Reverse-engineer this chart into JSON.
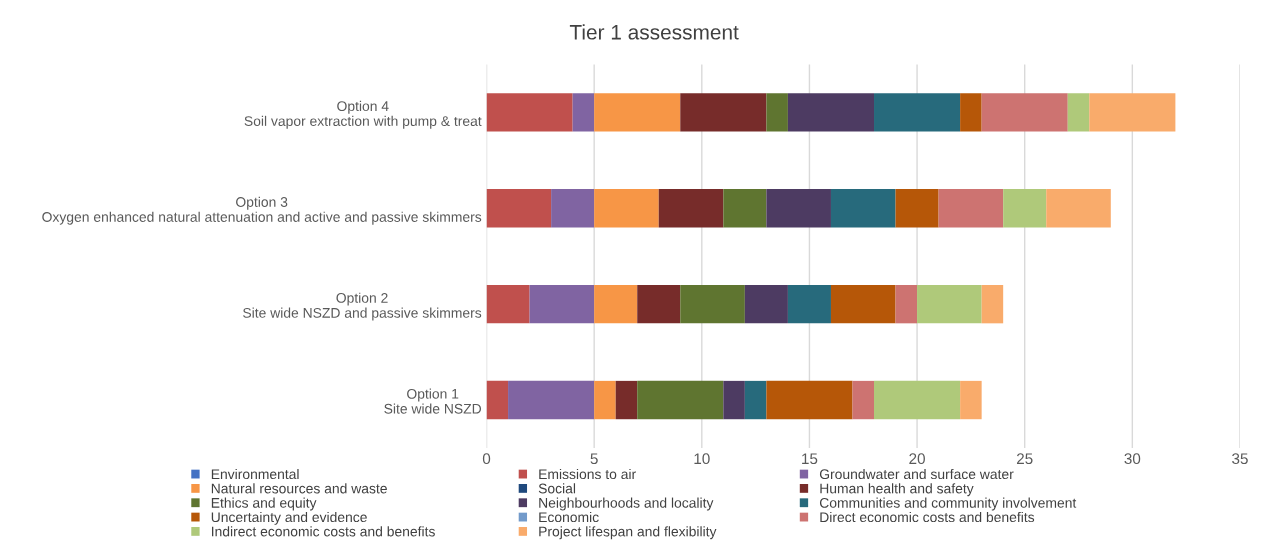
{
  "chart_data": {
    "type": "bar",
    "orientation": "horizontal",
    "stacked": true,
    "title": "Tier 1 assessment",
    "categories": [
      "Option 4\nSoil vapor extraction with pump & treat",
      "Option 3\nOxygen enhanced natural attenuation and active and passive skimmers",
      "Option 2\nSite wide NSZD and passive skimmers",
      "Option 1\nSite wide NSZD"
    ],
    "series": [
      {
        "name": "Environmental",
        "color": "#4472c4",
        "values": [
          0,
          0,
          0,
          0
        ]
      },
      {
        "name": "Emissions to air",
        "color": "#c0504d",
        "values": [
          4,
          3,
          2,
          1
        ]
      },
      {
        "name": "Groundwater and surface water",
        "color": "#8064a2",
        "values": [
          1,
          2,
          3,
          4
        ]
      },
      {
        "name": "Natural resources and waste",
        "color": "#f79646",
        "values": [
          4,
          3,
          2,
          1
        ]
      },
      {
        "name": "Social",
        "color": "#1f497d",
        "values": [
          0,
          0,
          0,
          0
        ]
      },
      {
        "name": "Human health and safety",
        "color": "#772c2a",
        "values": [
          4,
          3,
          2,
          1
        ]
      },
      {
        "name": "Ethics and equity",
        "color": "#5f7530",
        "values": [
          1,
          2,
          3,
          4
        ]
      },
      {
        "name": "Neighbourhoods and locality",
        "color": "#4d3b62",
        "values": [
          4,
          3,
          2,
          1
        ]
      },
      {
        "name": "Communities and community involvement",
        "color": "#276a7c",
        "values": [
          4,
          3,
          2,
          1
        ]
      },
      {
        "name": "Uncertainty and evidence",
        "color": "#b65708",
        "values": [
          1,
          2,
          3,
          4
        ]
      },
      {
        "name": "Economic",
        "color": "#729aca",
        "values": [
          0,
          0,
          0,
          0
        ]
      },
      {
        "name": "Direct economic costs and benefits",
        "color": "#cd7371",
        "values": [
          4,
          3,
          1,
          1
        ]
      },
      {
        "name": "Indirect economic costs and benefits",
        "color": "#afc97a",
        "values": [
          1,
          2,
          3,
          4
        ]
      },
      {
        "name": "Project lifespan and flexibility",
        "color": "#f9ab6b",
        "values": [
          4,
          3,
          1,
          1
        ]
      }
    ],
    "xlim": [
      0,
      35
    ],
    "xticks": [
      0,
      5,
      10,
      15,
      20,
      25,
      30,
      35
    ],
    "grid": "x",
    "legend": "bottom"
  }
}
